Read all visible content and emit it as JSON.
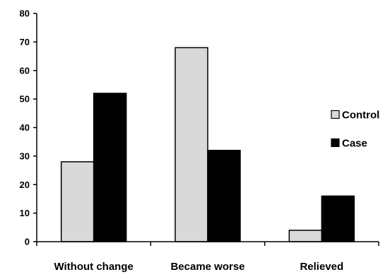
{
  "chart_data": {
    "type": "bar",
    "title": "",
    "xlabel": "",
    "ylabel": "",
    "categories": [
      "Without change",
      "Became worse",
      "Relieved"
    ],
    "series": [
      {
        "name": "Control",
        "values": [
          28,
          68,
          4
        ],
        "color": "#d9d9d9"
      },
      {
        "name": "Case",
        "values": [
          52,
          32,
          16
        ],
        "color": "#000000"
      }
    ],
    "ylim": [
      0,
      80
    ],
    "yticks": [
      0,
      10,
      20,
      30,
      40,
      50,
      60,
      70,
      80
    ],
    "grid": false,
    "legend_position": "right"
  }
}
